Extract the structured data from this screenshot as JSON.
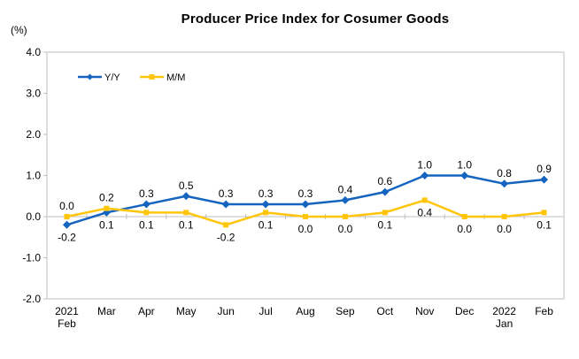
{
  "chart_data": {
    "type": "line",
    "title": "Producer Price Index for Cosumer Goods",
    "unit_label": "(%)",
    "categories": [
      "2021 Feb",
      "Mar",
      "Apr",
      "May",
      "Jun",
      "Jul",
      "Aug",
      "Sep",
      "Oct",
      "Nov",
      "Dec",
      "2022 Jan",
      "Feb"
    ],
    "x_tick_lines": [
      [
        "2021",
        "Feb"
      ],
      [
        "Mar"
      ],
      [
        "Apr"
      ],
      [
        "May"
      ],
      [
        "Jun"
      ],
      [
        "Jul"
      ],
      [
        "Aug"
      ],
      [
        "Sep"
      ],
      [
        "Oct"
      ],
      [
        "Nov"
      ],
      [
        "Dec"
      ],
      [
        "2022",
        "Jan"
      ],
      [
        "Feb"
      ]
    ],
    "series": [
      {
        "name": "Y/Y",
        "color": "#1565C0",
        "marker": "diamond",
        "values": [
          -0.2,
          0.1,
          0.3,
          0.5,
          0.3,
          0.3,
          0.3,
          0.4,
          0.6,
          1.0,
          1.0,
          0.8,
          0.9
        ]
      },
      {
        "name": "M/M",
        "color": "#FFC50A",
        "marker": "square",
        "values": [
          0.0,
          0.2,
          0.1,
          0.1,
          -0.2,
          0.1,
          0.0,
          0.0,
          0.1,
          0.4,
          0.0,
          0.0,
          0.1
        ]
      }
    ],
    "y_ticks": [
      4.0,
      3.0,
      2.0,
      1.0,
      0.0,
      -1.0,
      -2.0
    ],
    "ylim": [
      -2.0,
      4.0
    ],
    "grid": false,
    "data_labels": true,
    "legend_position": "top-left-inside",
    "axis_color": "#BFBFBF",
    "text_color": "#000000"
  }
}
